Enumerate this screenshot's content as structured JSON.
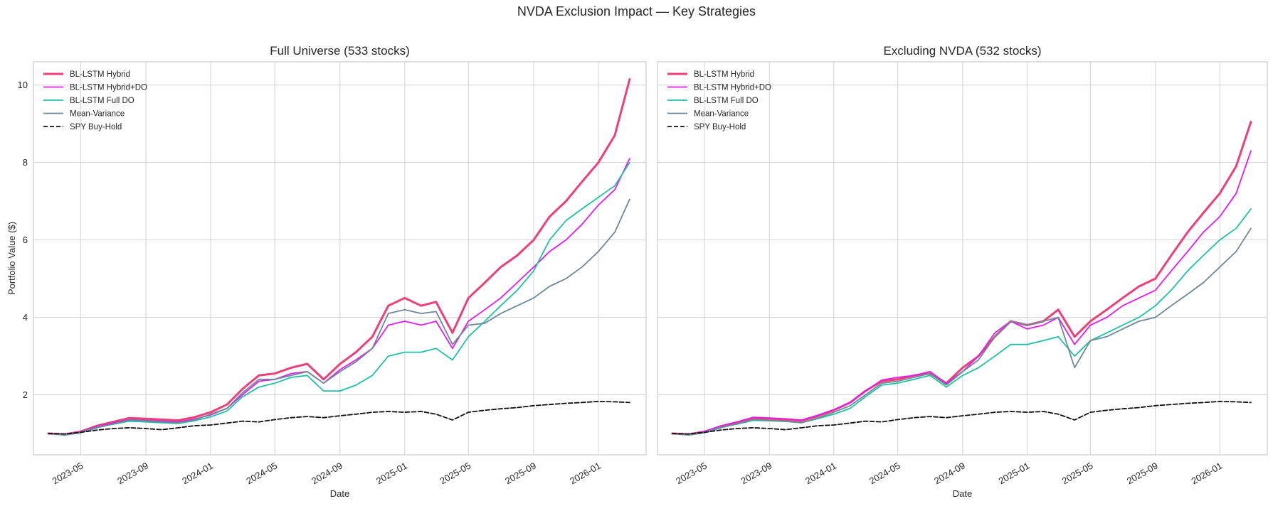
{
  "figure_title": "NVDA Exclusion Impact — Key Strategies",
  "colors": {
    "BL-LSTM Hybrid": "#ee3f76",
    "BL-LSTM Hybrid+DO": "#e21bf2",
    "BL-LSTM Full DO": "#1fc1a2",
    "Mean-Variance": "#6f8896",
    "SPY Buy-Hold": "#111111",
    "grid": "#d3d3d3",
    "axes_edge": "#cccccc"
  },
  "chart_data": [
    {
      "type": "line",
      "title": "Full Universe (533 stocks)",
      "xlabel": "Date",
      "ylabel": "Portfolio Value ($)",
      "x_ticks": [
        "2023-05",
        "2023-09",
        "2024-01",
        "2024-05",
        "2024-09",
        "2025-01",
        "2025-05",
        "2025-09",
        "2026-01"
      ],
      "y_ticks": [
        2,
        4,
        6,
        8,
        10
      ],
      "ylim": [
        0.45,
        10.6
      ],
      "xlim": [
        "2023-02",
        "2026-04"
      ],
      "grid": true,
      "legend_position": "top-left",
      "x": [
        "2023-03-01",
        "2023-04-01",
        "2023-05-01",
        "2023-06-01",
        "2023-07-01",
        "2023-08-01",
        "2023-09-01",
        "2023-10-01",
        "2023-11-01",
        "2023-12-01",
        "2024-01-01",
        "2024-02-01",
        "2024-03-01",
        "2024-04-01",
        "2024-05-01",
        "2024-06-01",
        "2024-07-01",
        "2024-08-01",
        "2024-09-01",
        "2024-10-01",
        "2024-11-01",
        "2024-12-01",
        "2025-01-01",
        "2025-02-01",
        "2025-03-01",
        "2025-04-01",
        "2025-05-01",
        "2025-06-01",
        "2025-07-01",
        "2025-08-01",
        "2025-09-01",
        "2025-10-01",
        "2025-11-01",
        "2025-12-01",
        "2026-01-01",
        "2026-02-01",
        "2026-03-01"
      ],
      "series": [
        {
          "name": "BL-LSTM Hybrid",
          "width": 3,
          "dash": false,
          "values": [
            1.0,
            0.98,
            1.05,
            1.2,
            1.3,
            1.4,
            1.38,
            1.36,
            1.34,
            1.42,
            1.55,
            1.75,
            2.15,
            2.5,
            2.55,
            2.7,
            2.8,
            2.4,
            2.8,
            3.1,
            3.5,
            4.3,
            4.5,
            4.3,
            4.4,
            3.6,
            4.5,
            4.9,
            5.3,
            5.6,
            6.0,
            6.6,
            7.0,
            7.5,
            8.0,
            8.7,
            10.15
          ]
        },
        {
          "name": "BL-LSTM Hybrid+DO",
          "width": 1.8,
          "dash": false,
          "values": [
            1.0,
            0.98,
            1.04,
            1.18,
            1.27,
            1.36,
            1.34,
            1.32,
            1.3,
            1.37,
            1.48,
            1.65,
            2.0,
            2.35,
            2.4,
            2.55,
            2.6,
            2.3,
            2.65,
            2.9,
            3.2,
            3.8,
            3.9,
            3.8,
            3.9,
            3.2,
            3.9,
            4.2,
            4.5,
            4.9,
            5.3,
            5.7,
            6.0,
            6.4,
            6.9,
            7.3,
            8.1
          ]
        },
        {
          "name": "BL-LSTM Full DO",
          "width": 1.8,
          "dash": false,
          "values": [
            1.0,
            0.97,
            1.03,
            1.16,
            1.24,
            1.32,
            1.3,
            1.28,
            1.26,
            1.33,
            1.43,
            1.58,
            1.95,
            2.2,
            2.3,
            2.45,
            2.5,
            2.1,
            2.1,
            2.25,
            2.5,
            3.0,
            3.1,
            3.1,
            3.2,
            2.9,
            3.5,
            3.9,
            4.3,
            4.7,
            5.2,
            6.0,
            6.5,
            6.8,
            7.1,
            7.4,
            8.0
          ]
        },
        {
          "name": "Mean-Variance",
          "width": 1.8,
          "dash": false,
          "values": [
            1.0,
            0.96,
            1.02,
            1.15,
            1.25,
            1.35,
            1.33,
            1.3,
            1.28,
            1.35,
            1.5,
            1.65,
            2.05,
            2.4,
            2.4,
            2.5,
            2.6,
            2.3,
            2.6,
            2.85,
            3.2,
            4.1,
            4.2,
            4.1,
            4.15,
            3.3,
            3.8,
            3.85,
            4.1,
            4.3,
            4.5,
            4.8,
            5.0,
            5.3,
            5.7,
            6.2,
            7.05
          ]
        },
        {
          "name": "SPY Buy-Hold",
          "width": 1.8,
          "dash": true,
          "values": [
            1.0,
            0.99,
            1.03,
            1.09,
            1.13,
            1.15,
            1.13,
            1.1,
            1.15,
            1.2,
            1.22,
            1.27,
            1.32,
            1.3,
            1.36,
            1.41,
            1.44,
            1.41,
            1.46,
            1.5,
            1.55,
            1.57,
            1.55,
            1.57,
            1.5,
            1.35,
            1.55,
            1.6,
            1.64,
            1.67,
            1.72,
            1.75,
            1.78,
            1.8,
            1.83,
            1.82,
            1.8
          ]
        }
      ]
    },
    {
      "type": "line",
      "title": "Excluding NVDA (532 stocks)",
      "xlabel": "Date",
      "ylabel": "",
      "x_ticks": [
        "2023-05",
        "2023-09",
        "2024-01",
        "2024-05",
        "2024-09",
        "2025-01",
        "2025-05",
        "2025-09",
        "2026-01"
      ],
      "y_ticks": [
        2,
        4,
        6,
        8,
        10
      ],
      "ylim": [
        0.45,
        10.6
      ],
      "xlim": [
        "2023-02",
        "2026-04"
      ],
      "grid": true,
      "legend_position": "top-left",
      "x": [
        "2023-03-01",
        "2023-04-01",
        "2023-05-01",
        "2023-06-01",
        "2023-07-01",
        "2023-08-01",
        "2023-09-01",
        "2023-10-01",
        "2023-11-01",
        "2023-12-01",
        "2024-01-01",
        "2024-02-01",
        "2024-03-01",
        "2024-04-01",
        "2024-05-01",
        "2024-06-01",
        "2024-07-01",
        "2024-08-01",
        "2024-09-01",
        "2024-10-01",
        "2024-11-01",
        "2024-12-01",
        "2025-01-01",
        "2025-02-01",
        "2025-03-01",
        "2025-04-01",
        "2025-05-01",
        "2025-06-01",
        "2025-07-01",
        "2025-08-01",
        "2025-09-01",
        "2025-10-01",
        "2025-11-01",
        "2025-12-01",
        "2026-01-01",
        "2026-02-01",
        "2026-03-01"
      ],
      "series": [
        {
          "name": "BL-LSTM Hybrid",
          "width": 3,
          "dash": false,
          "values": [
            1.0,
            0.98,
            1.05,
            1.18,
            1.28,
            1.4,
            1.38,
            1.36,
            1.33,
            1.45,
            1.6,
            1.8,
            2.1,
            2.35,
            2.4,
            2.5,
            2.55,
            2.3,
            2.7,
            3.0,
            3.5,
            3.9,
            3.8,
            3.9,
            4.2,
            3.5,
            3.9,
            4.2,
            4.5,
            4.8,
            5.0,
            5.6,
            6.2,
            6.7,
            7.2,
            7.9,
            9.05
          ]
        },
        {
          "name": "BL-LSTM Hybrid+DO",
          "width": 1.8,
          "dash": false,
          "values": [
            1.0,
            0.98,
            1.05,
            1.2,
            1.3,
            1.42,
            1.4,
            1.38,
            1.35,
            1.47,
            1.62,
            1.8,
            2.1,
            2.38,
            2.45,
            2.5,
            2.6,
            2.3,
            2.6,
            3.0,
            3.6,
            3.9,
            3.7,
            3.8,
            4.0,
            3.3,
            3.8,
            4.0,
            4.3,
            4.5,
            4.7,
            5.2,
            5.7,
            6.2,
            6.6,
            7.2,
            8.3
          ]
        },
        {
          "name": "BL-LSTM Full DO",
          "width": 1.8,
          "dash": false,
          "values": [
            1.0,
            0.97,
            1.03,
            1.16,
            1.24,
            1.34,
            1.33,
            1.31,
            1.28,
            1.38,
            1.5,
            1.65,
            1.95,
            2.25,
            2.3,
            2.4,
            2.5,
            2.2,
            2.5,
            2.7,
            3.0,
            3.3,
            3.3,
            3.4,
            3.5,
            3.0,
            3.4,
            3.6,
            3.8,
            4.0,
            4.3,
            4.7,
            5.2,
            5.6,
            6.0,
            6.3,
            6.8
          ]
        },
        {
          "name": "Mean-Variance",
          "width": 1.8,
          "dash": false,
          "values": [
            1.0,
            0.96,
            1.02,
            1.15,
            1.25,
            1.36,
            1.34,
            1.32,
            1.28,
            1.4,
            1.55,
            1.72,
            2.0,
            2.3,
            2.35,
            2.45,
            2.55,
            2.25,
            2.6,
            2.9,
            3.5,
            3.9,
            3.8,
            3.9,
            4.0,
            2.7,
            3.4,
            3.5,
            3.7,
            3.9,
            4.0,
            4.3,
            4.6,
            4.9,
            5.3,
            5.7,
            6.3
          ]
        },
        {
          "name": "SPY Buy-Hold",
          "width": 1.8,
          "dash": true,
          "values": [
            1.0,
            0.99,
            1.03,
            1.09,
            1.13,
            1.15,
            1.13,
            1.1,
            1.15,
            1.2,
            1.22,
            1.27,
            1.32,
            1.3,
            1.36,
            1.41,
            1.44,
            1.41,
            1.46,
            1.5,
            1.55,
            1.57,
            1.55,
            1.57,
            1.5,
            1.35,
            1.55,
            1.6,
            1.64,
            1.67,
            1.72,
            1.75,
            1.78,
            1.8,
            1.83,
            1.82,
            1.8
          ]
        }
      ]
    }
  ]
}
